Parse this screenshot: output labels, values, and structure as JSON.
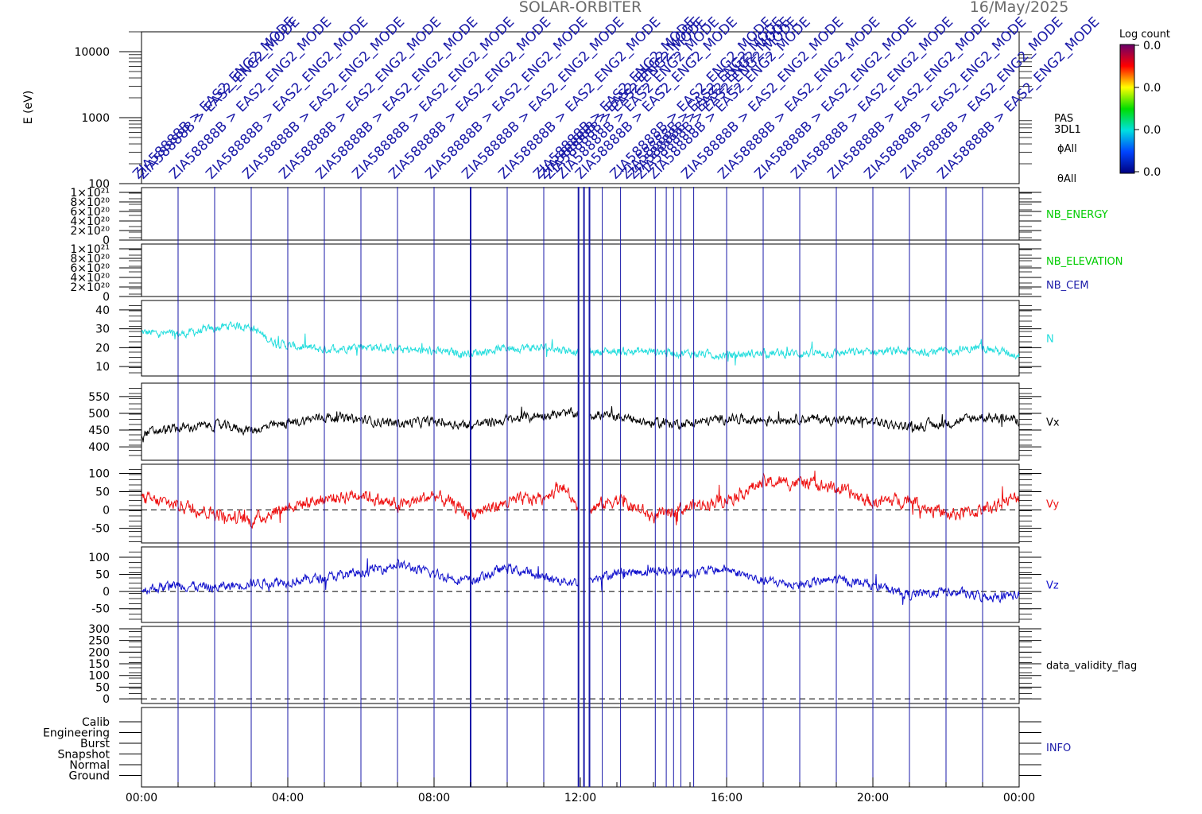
{
  "header": {
    "mission": "SOLAR-ORBITER",
    "date": "16/May/2025"
  },
  "x_axis": {
    "tick_labels": [
      "00:00",
      "04:00",
      "08:00",
      "12:00",
      "16:00",
      "20:00",
      "00:00"
    ]
  },
  "colorbar": {
    "title": "Log count",
    "ticks": [
      "0.0",
      "0.0",
      "0.0",
      "0.0"
    ],
    "colors": [
      "#6a006a",
      "#ff0000",
      "#ffff00",
      "#00dd00",
      "#00e0e0",
      "#0044ff",
      "#000080"
    ]
  },
  "spectrogram": {
    "ylabel": "E (eV)",
    "side_labels": [
      "PAS",
      "3DL1",
      "ϕAll",
      "θAll"
    ],
    "mode_label": "ZIA58888B > EAS2_ENG2_MODE"
  },
  "info_panel": {
    "levels": [
      "Calib",
      "Engineering",
      "Burst",
      "Snapshot",
      "Normal",
      "Ground"
    ],
    "label": "INFO"
  },
  "chart_data": [
    {
      "type": "heatmap",
      "title": "",
      "ylabel": "E (eV)",
      "yscale": "log",
      "ylim": [
        100,
        20000
      ],
      "ytick_labels": [
        "100",
        "1000",
        "10000"
      ],
      "xlim": [
        "00:00",
        "24:00"
      ],
      "note": "empty spectrogram, colour scale all 0.0"
    },
    {
      "type": "line",
      "ylim": [
        0,
        1.1e+21
      ],
      "ytick_labels": [
        "0",
        "2×10²⁰",
        "4×10²⁰",
        "6×10²⁰",
        "8×10²⁰",
        "1×10²¹"
      ],
      "series": [
        {
          "name": "NB_ENERGY",
          "color": "#00cc00",
          "values": []
        }
      ]
    },
    {
      "type": "line",
      "ylim": [
        0,
        1.1e+21
      ],
      "ytick_labels": [
        "0",
        "2×10²⁰",
        "4×10²⁰",
        "6×10²⁰",
        "8×10²⁰",
        "1×10²¹"
      ],
      "series": [
        {
          "name": "NB_ELEVATION",
          "color": "#00cc00",
          "values": []
        },
        {
          "name": "NB_CEM",
          "color": "#1a1aa8",
          "values": []
        }
      ]
    },
    {
      "type": "line",
      "ylim": [
        5,
        45
      ],
      "ytick_labels": [
        "10",
        "20",
        "30",
        "40"
      ],
      "x_hours": [
        0,
        1,
        2,
        2.5,
        3,
        3.5,
        4,
        5,
        6,
        7,
        8,
        9,
        10,
        11,
        12,
        13,
        14,
        15,
        16,
        17,
        18,
        19,
        20,
        21,
        22,
        23,
        24
      ],
      "series": [
        {
          "name": "N",
          "color": "#22dddd",
          "values": [
            28,
            27,
            30,
            32,
            31,
            24,
            21,
            19,
            21,
            19,
            18,
            17,
            20,
            20,
            18,
            18,
            18,
            17,
            16,
            17,
            17,
            17,
            18,
            18,
            18,
            20,
            16
          ],
          "noise": 2.2
        }
      ]
    },
    {
      "type": "line",
      "ylim": [
        360,
        590
      ],
      "ytick_labels": [
        "400",
        "450",
        "500",
        "550"
      ],
      "x_hours": [
        0,
        1,
        2,
        3,
        4,
        5,
        6,
        7,
        8,
        9,
        10,
        11,
        12,
        13,
        14,
        15,
        16,
        17,
        18,
        19,
        20,
        21,
        22,
        23,
        24
      ],
      "series": [
        {
          "name": "Vx",
          "color": "#000000",
          "values": [
            440,
            455,
            465,
            450,
            470,
            490,
            480,
            470,
            475,
            465,
            480,
            495,
            500,
            490,
            470,
            470,
            485,
            480,
            485,
            480,
            475,
            460,
            470,
            490,
            480
          ],
          "noise": 14
        }
      ]
    },
    {
      "type": "line",
      "ylim": [
        -90,
        125
      ],
      "ytick_labels": [
        "-50",
        "0",
        "50",
        "100"
      ],
      "x_hours": [
        0,
        1,
        2,
        3,
        4,
        5,
        6,
        7,
        8,
        9,
        10,
        11,
        11.5,
        12,
        13,
        14,
        15,
        16,
        17,
        18,
        19,
        20,
        21,
        22,
        23,
        24
      ],
      "series": [
        {
          "name": "Vy",
          "color": "#ee1111",
          "values": [
            30,
            15,
            -10,
            -30,
            10,
            30,
            45,
            10,
            40,
            -10,
            20,
            35,
            70,
            -10,
            30,
            -20,
            10,
            30,
            75,
            75,
            60,
            20,
            30,
            -15,
            0,
            35
          ],
          "noise": 18
        }
      ]
    },
    {
      "type": "line",
      "ylim": [
        -90,
        130
      ],
      "ytick_labels": [
        "-50",
        "0",
        "50",
        "100"
      ],
      "x_hours": [
        0,
        1,
        2,
        3,
        4,
        5,
        6,
        7,
        8,
        9,
        10,
        11,
        12,
        13,
        14,
        15,
        16,
        17,
        18,
        19,
        20,
        21,
        22,
        23,
        24
      ],
      "series": [
        {
          "name": "Vz",
          "color": "#1010cc",
          "values": [
            5,
            20,
            10,
            25,
            30,
            40,
            55,
            80,
            50,
            30,
            70,
            40,
            25,
            55,
            60,
            55,
            65,
            30,
            20,
            35,
            20,
            -10,
            0,
            -15,
            -10
          ],
          "noise": 14
        }
      ]
    },
    {
      "type": "line",
      "ylim": [
        -20,
        310
      ],
      "ytick_labels": [
        "0",
        "50",
        "100",
        "150",
        "200",
        "250",
        "300"
      ],
      "series": [
        {
          "name": "data_validity_flag",
          "color": "#000000",
          "values": []
        }
      ]
    }
  ],
  "event_markers": {
    "color": "#1a1aa8",
    "hours": [
      1,
      2,
      3,
      4,
      5,
      6,
      7,
      8,
      9,
      10,
      11,
      11.95,
      12.1,
      12.25,
      12.6,
      13.1,
      14.05,
      14.35,
      14.55,
      14.75,
      15.1,
      16,
      17,
      18,
      19,
      20,
      21,
      22,
      23
    ]
  }
}
